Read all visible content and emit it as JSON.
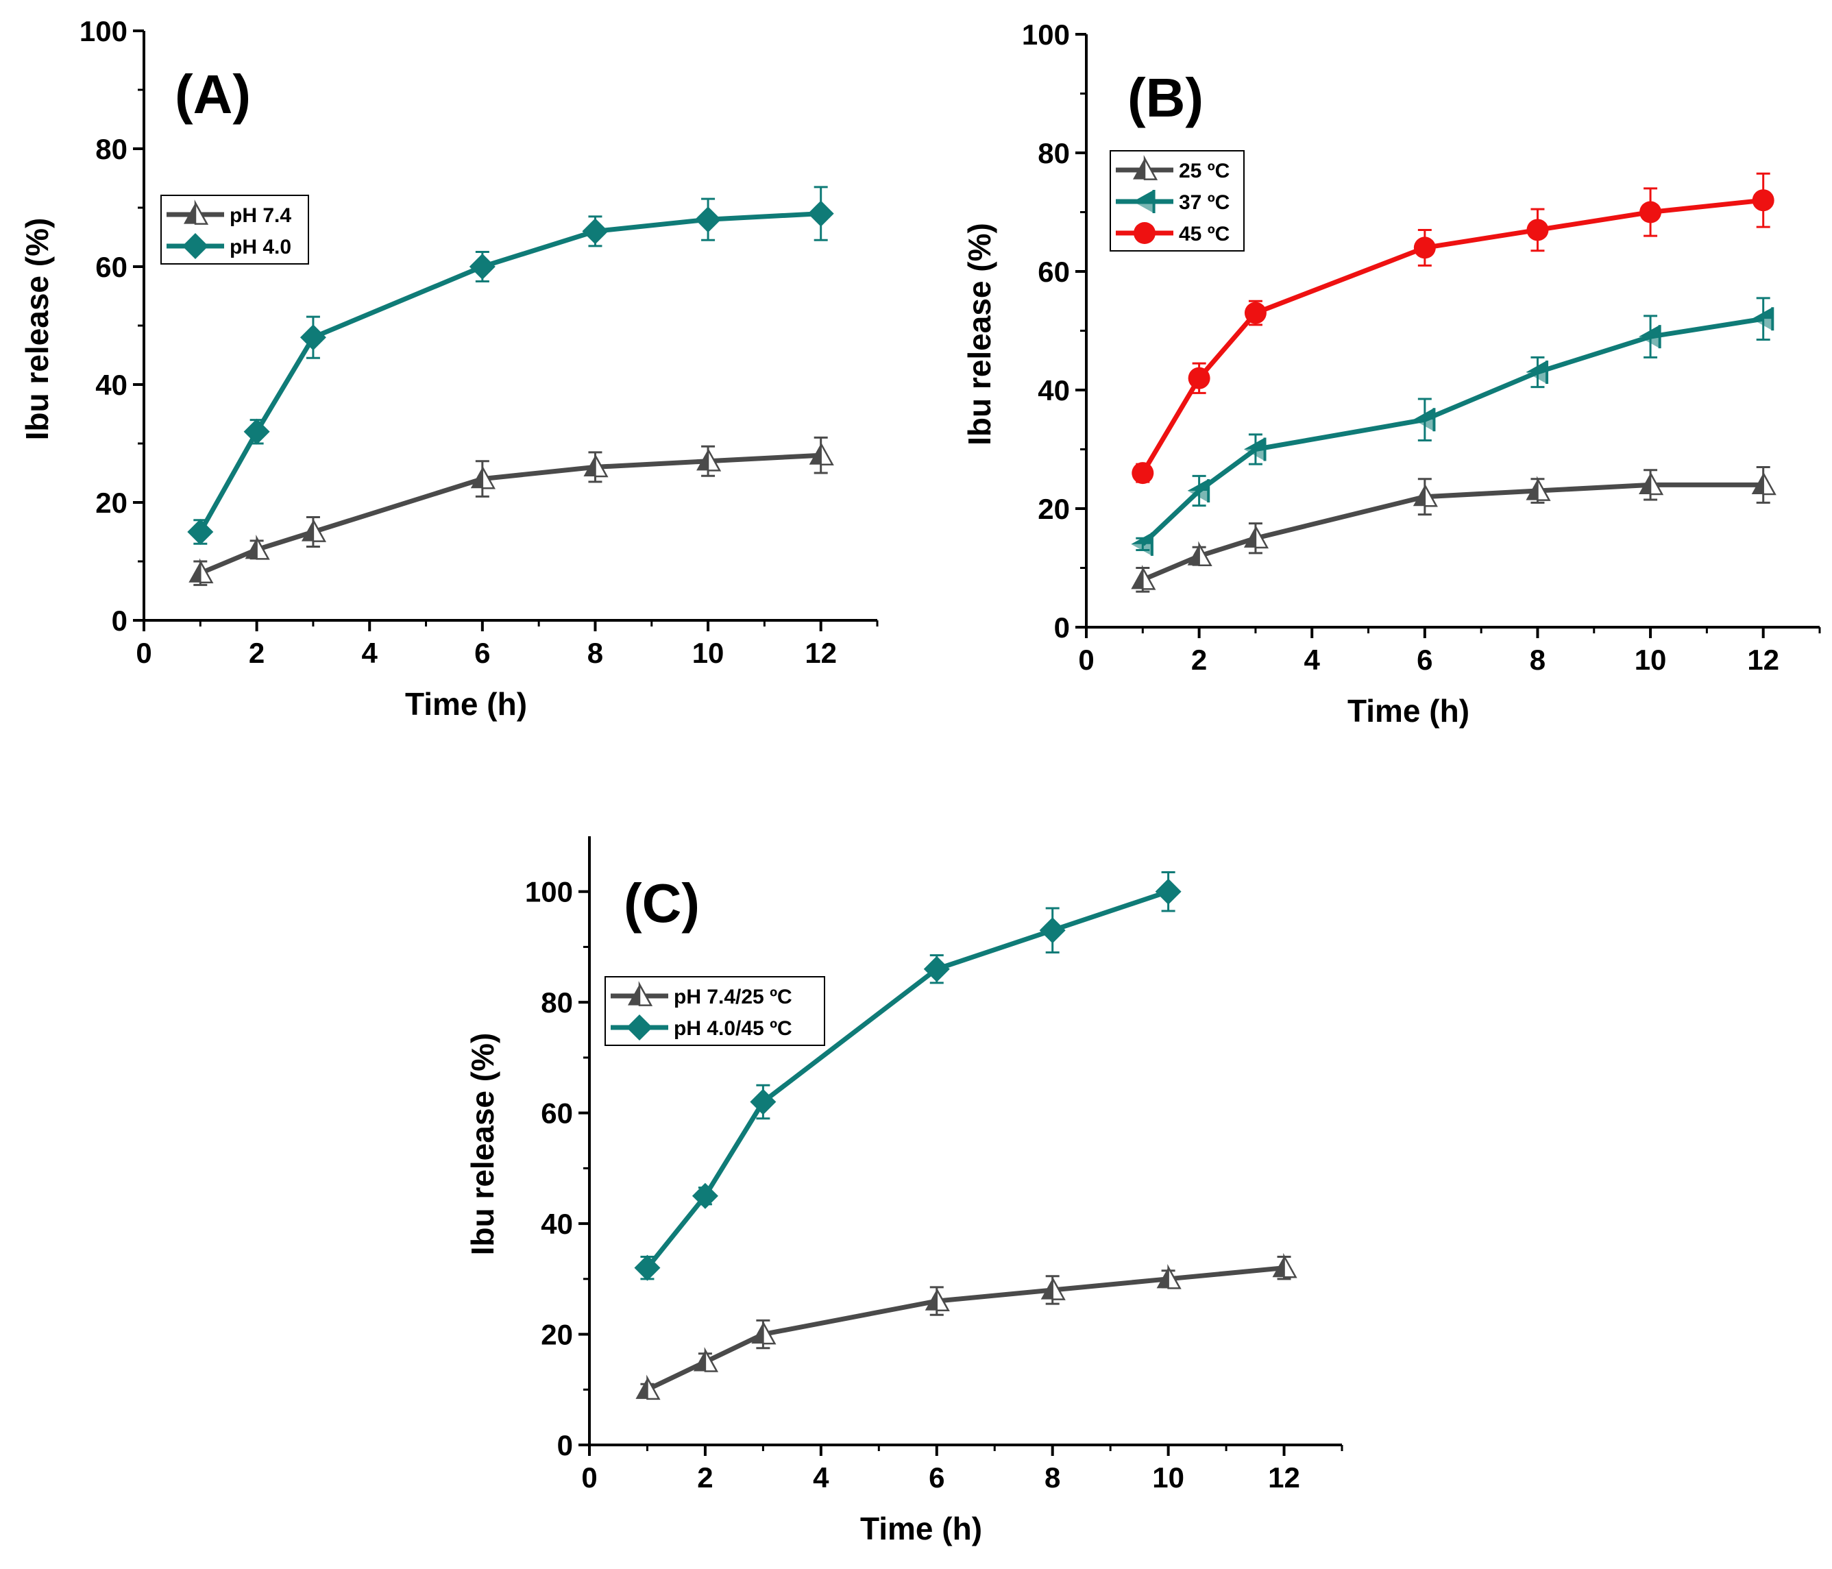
{
  "chart_data": [
    {
      "panel": "(A)",
      "type": "line",
      "xlabel": "Time (h)",
      "ylabel": "Ibu release (%)",
      "xlim": [
        0,
        13
      ],
      "ylim": [
        0,
        100
      ],
      "xticks": [
        0,
        2,
        4,
        6,
        8,
        10,
        12
      ],
      "yticks": [
        0,
        20,
        40,
        60,
        80,
        100
      ],
      "legend_position": "upper-left",
      "series": [
        {
          "name": "pH 7.4",
          "marker": "triangle-up",
          "color": "#4a4a4a",
          "x": [
            1,
            2,
            3,
            6,
            8,
            10,
            12
          ],
          "y": [
            8,
            12,
            15,
            24,
            26,
            27,
            28
          ],
          "err": [
            2,
            1.5,
            2.5,
            3,
            2.5,
            2.5,
            3
          ]
        },
        {
          "name": "pH 4.0",
          "marker": "diamond",
          "color": "#0f7b77",
          "x": [
            1,
            2,
            3,
            6,
            8,
            10,
            12
          ],
          "y": [
            15,
            32,
            48,
            60,
            66,
            68,
            69
          ],
          "err": [
            2,
            2,
            3.5,
            2.5,
            2.5,
            3.5,
            4.5
          ]
        }
      ]
    },
    {
      "panel": "(B)",
      "type": "line",
      "xlabel": "Time (h)",
      "ylabel": "Ibu release (%)",
      "xlim": [
        0,
        13
      ],
      "ylim": [
        0,
        100
      ],
      "xticks": [
        0,
        2,
        4,
        6,
        8,
        10,
        12
      ],
      "yticks": [
        0,
        20,
        40,
        60,
        80,
        100
      ],
      "legend_position": "upper-left",
      "series": [
        {
          "name": "25 ºC",
          "marker": "triangle-up",
          "color": "#4a4a4a",
          "x": [
            1,
            2,
            3,
            6,
            8,
            10,
            12
          ],
          "y": [
            8,
            12,
            15,
            22,
            23,
            24,
            24
          ],
          "err": [
            2,
            1.5,
            2.5,
            3,
            2,
            2.5,
            3
          ]
        },
        {
          "name": "37 ºC",
          "marker": "triangle-left",
          "color": "#0f7b77",
          "x": [
            1,
            2,
            3,
            6,
            8,
            10,
            12
          ],
          "y": [
            14,
            23,
            30,
            35,
            43,
            49,
            52
          ],
          "err": [
            1,
            2.5,
            2.5,
            3.5,
            2.5,
            3.5,
            3.5
          ]
        },
        {
          "name": "45 ºC",
          "marker": "circle",
          "color": "#ee1111",
          "x": [
            1,
            2,
            3,
            6,
            8,
            10,
            12
          ],
          "y": [
            26,
            42,
            53,
            64,
            67,
            70,
            72
          ],
          "err": [
            1.5,
            2.5,
            2,
            3,
            3.5,
            4,
            4.5
          ]
        }
      ]
    },
    {
      "panel": "(C)",
      "type": "line",
      "xlabel": "Time (h)",
      "ylabel": "Ibu release (%)",
      "xlim": [
        0,
        13
      ],
      "ylim": [
        0,
        110
      ],
      "xticks": [
        0,
        2,
        4,
        6,
        8,
        10,
        12
      ],
      "yticks": [
        0,
        20,
        40,
        60,
        80,
        100
      ],
      "legend_position": "upper-left",
      "series": [
        {
          "name": "pH 7.4/25 ºC",
          "marker": "triangle-up",
          "color": "#4a4a4a",
          "x": [
            1,
            2,
            3,
            6,
            8,
            10,
            12
          ],
          "y": [
            10,
            15,
            20,
            26,
            28,
            30,
            32
          ],
          "err": [
            1,
            1.5,
            2.5,
            2.5,
            2.5,
            1.5,
            2
          ]
        },
        {
          "name": "pH 4.0/45 ºC",
          "marker": "diamond",
          "color": "#0f7b77",
          "x": [
            1,
            2,
            3,
            6,
            8,
            10
          ],
          "y": [
            32,
            45,
            62,
            86,
            93,
            100
          ],
          "err": [
            2,
            1.5,
            3,
            2.5,
            4,
            3.5
          ]
        }
      ]
    }
  ]
}
